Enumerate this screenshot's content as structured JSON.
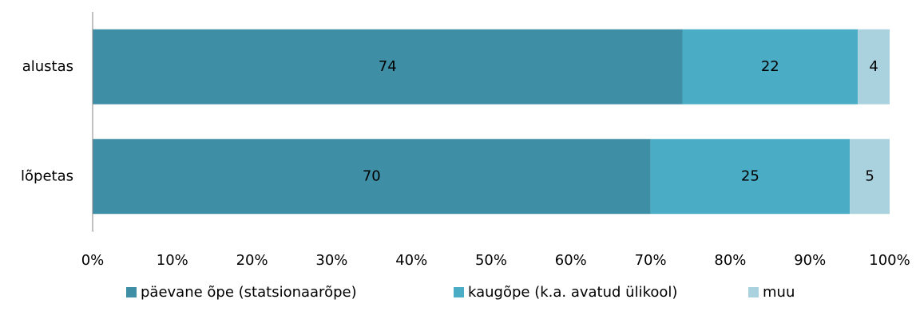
{
  "chart_data": {
    "type": "stacked-bar-horizontal",
    "categories": [
      "alustas",
      "lõpetas"
    ],
    "series": [
      {
        "name": "päevane õpe (statsionaarõpe)",
        "color": "#3e8ea5",
        "values": [
          74,
          70
        ]
      },
      {
        "name": "kaugõpe (k.a. avatud ülikool)",
        "color": "#4bacc6",
        "values": [
          22,
          25
        ]
      },
      {
        "name": "muu",
        "color": "#a9d1de",
        "values": [
          4,
          5
        ]
      }
    ],
    "xlim": [
      0,
      100
    ],
    "xticks": [
      {
        "value": 0,
        "label": "0%"
      },
      {
        "value": 10,
        "label": "10%"
      },
      {
        "value": 20,
        "label": "20%"
      },
      {
        "value": 30,
        "label": "30%"
      },
      {
        "value": 40,
        "label": "40%"
      },
      {
        "value": 50,
        "label": "50%"
      },
      {
        "value": 60,
        "label": "60%"
      },
      {
        "value": 70,
        "label": "70%"
      },
      {
        "value": 80,
        "label": "80%"
      },
      {
        "value": 90,
        "label": "90%"
      },
      {
        "value": 100,
        "label": "100%"
      }
    ],
    "grid": false,
    "legend": "bottom"
  }
}
